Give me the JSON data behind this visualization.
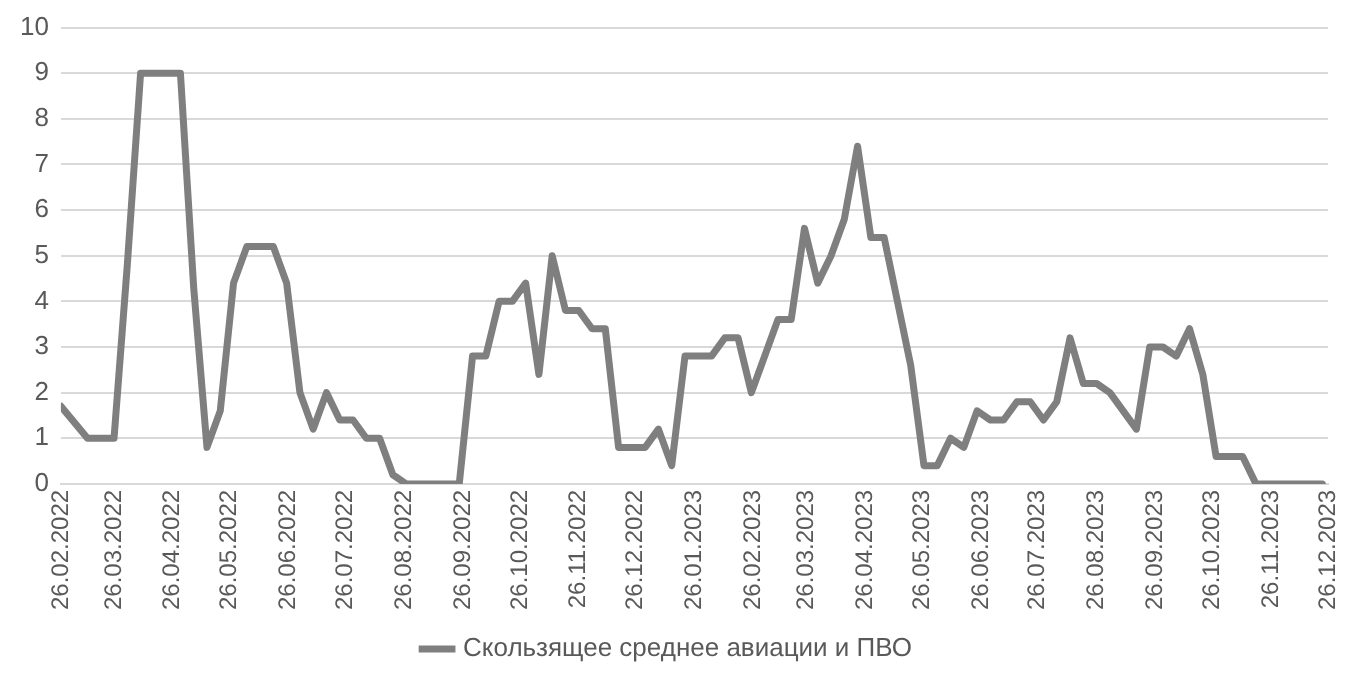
{
  "chart_data": {
    "type": "line",
    "legend": "bottom",
    "grid": "y",
    "marker": "none",
    "line_style": "solid",
    "xlim": [
      "2022-02-26",
      "2023-12-26"
    ],
    "ylim": [
      0,
      10
    ],
    "yticks": [
      0,
      1,
      2,
      3,
      4,
      5,
      6,
      7,
      8,
      9,
      10
    ],
    "xticks": [
      {
        "value": "2022-02-26",
        "label": "26.02.2022"
      },
      {
        "value": "2022-03-26",
        "label": "26.03.2022"
      },
      {
        "value": "2022-04-26",
        "label": "26.04.2022"
      },
      {
        "value": "2022-05-26",
        "label": "26.05.2022"
      },
      {
        "value": "2022-06-26",
        "label": "26.06.2022"
      },
      {
        "value": "2022-07-26",
        "label": "26.07.2022"
      },
      {
        "value": "2022-08-26",
        "label": "26.08.2022"
      },
      {
        "value": "2022-09-26",
        "label": "26.09.2022"
      },
      {
        "value": "2022-10-26",
        "label": "26.10.2022"
      },
      {
        "value": "2022-11-26",
        "label": "26.11.2022"
      },
      {
        "value": "2022-12-26",
        "label": "26.12.2022"
      },
      {
        "value": "2023-01-26",
        "label": "26.01.2023"
      },
      {
        "value": "2023-02-26",
        "label": "26.02.2023"
      },
      {
        "value": "2023-03-26",
        "label": "26.03.2023"
      },
      {
        "value": "2023-04-26",
        "label": "26.04.2023"
      },
      {
        "value": "2023-05-26",
        "label": "26.05.2023"
      },
      {
        "value": "2023-06-26",
        "label": "26.06.2023"
      },
      {
        "value": "2023-07-26",
        "label": "26.07.2023"
      },
      {
        "value": "2023-08-26",
        "label": "26.08.2023"
      },
      {
        "value": "2023-09-26",
        "label": "26.09.2023"
      },
      {
        "value": "2023-10-26",
        "label": "26.10.2023"
      },
      {
        "value": "2023-11-26",
        "label": "26.11.2023"
      },
      {
        "value": "2023-12-26",
        "label": "26.12.2023"
      }
    ],
    "series": [
      {
        "name": "Скользящее среднее авиации и ПВО",
        "color": "#7f7f7f",
        "x": [
          "2022-02-26",
          "2022-03-12",
          "2022-03-26",
          "2022-04-02",
          "2022-04-09",
          "2022-04-30",
          "2022-05-07",
          "2022-05-14",
          "2022-05-21",
          "2022-05-28",
          "2022-06-04",
          "2022-06-18",
          "2022-06-25",
          "2022-07-02",
          "2022-07-09",
          "2022-07-16",
          "2022-07-23",
          "2022-07-30",
          "2022-08-06",
          "2022-08-13",
          "2022-08-20",
          "2022-08-27",
          "2022-09-24",
          "2022-10-01",
          "2022-10-08",
          "2022-10-15",
          "2022-10-22",
          "2022-10-29",
          "2022-11-05",
          "2022-11-12",
          "2022-11-19",
          "2022-11-26",
          "2022-12-03",
          "2022-12-10",
          "2022-12-17",
          "2022-12-31",
          "2023-01-07",
          "2023-01-14",
          "2023-01-21",
          "2023-02-04",
          "2023-02-11",
          "2023-02-18",
          "2023-02-25",
          "2023-03-11",
          "2023-03-18",
          "2023-03-25",
          "2023-04-01",
          "2023-04-08",
          "2023-04-15",
          "2023-04-22",
          "2023-04-29",
          "2023-05-06",
          "2023-05-13",
          "2023-05-20",
          "2023-05-27",
          "2023-06-03",
          "2023-06-10",
          "2023-06-17",
          "2023-06-24",
          "2023-07-01",
          "2023-07-08",
          "2023-07-15",
          "2023-07-22",
          "2023-07-29",
          "2023-08-05",
          "2023-08-12",
          "2023-08-19",
          "2023-08-26",
          "2023-09-02",
          "2023-09-09",
          "2023-09-16",
          "2023-09-23",
          "2023-09-30",
          "2023-10-07",
          "2023-10-14",
          "2023-10-21",
          "2023-10-28",
          "2023-11-11",
          "2023-11-18",
          "2023-12-23"
        ],
        "values": [
          1.7,
          1.0,
          1.0,
          4.8,
          9.0,
          9.0,
          4.3,
          0.8,
          1.6,
          4.4,
          5.2,
          5.2,
          4.4,
          2.0,
          1.2,
          2.0,
          1.4,
          1.4,
          1.0,
          1.0,
          0.2,
          0,
          0,
          2.8,
          2.8,
          4.0,
          4.0,
          4.4,
          2.4,
          5.0,
          3.8,
          3.8,
          3.4,
          3.4,
          0.8,
          0.8,
          1.2,
          0.4,
          2.8,
          2.8,
          3.2,
          3.2,
          2.0,
          3.6,
          3.6,
          5.6,
          4.4,
          5.0,
          5.8,
          7.4,
          5.4,
          5.4,
          4.0,
          2.6,
          0.4,
          0.4,
          1.0,
          0.8,
          1.6,
          1.4,
          1.4,
          1.8,
          1.8,
          1.4,
          1.8,
          3.2,
          2.2,
          2.2,
          2.0,
          1.6,
          1.2,
          3.0,
          3.0,
          2.8,
          3.4,
          2.4,
          0.6,
          0.6,
          0,
          0
        ]
      }
    ]
  }
}
